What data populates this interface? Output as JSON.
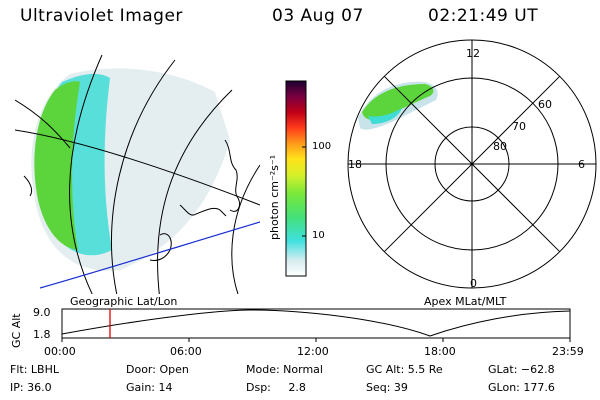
{
  "header": {
    "title": "Ultraviolet Imager",
    "date": "03 Aug 07",
    "time": "02:21:49 UT"
  },
  "left_panel": {
    "label": "Geographic Lat/Lon"
  },
  "right_panel": {
    "label": "Apex MLat/MLT",
    "mlt_labels": {
      "top": "12",
      "left": "18",
      "right": "6",
      "bottom": "0"
    },
    "lat_labels": [
      "60",
      "70",
      "80"
    ]
  },
  "colorbar": {
    "title": "photon cm⁻²s⁻¹",
    "ticks": [
      "100",
      "10"
    ],
    "scale": "log"
  },
  "altitude_plot": {
    "ylabel": "GC Alt",
    "y_ticks": [
      "9.0",
      "1.8"
    ],
    "x_ticks": [
      "00:00",
      "06:00",
      "12:00",
      "18:00",
      "23:59"
    ],
    "marker_time": "02:21:49",
    "marker_color": "#e00000"
  },
  "footer": {
    "flt": "Flt: LBHL",
    "ip": "IP: 36.0",
    "door": "Door: Open",
    "gain": "Gain: 14",
    "mode": "Mode: Normal",
    "dsp": "Dsp:     2.8",
    "gc_alt": "GC Alt: 5.5 Re",
    "seq": "Seq: 39",
    "glat": "GLat: −62.8",
    "glon": "GLon: 177.6"
  },
  "colors": {
    "coastline_blue": "#1a2fd0",
    "marker_red": "#e00000"
  }
}
